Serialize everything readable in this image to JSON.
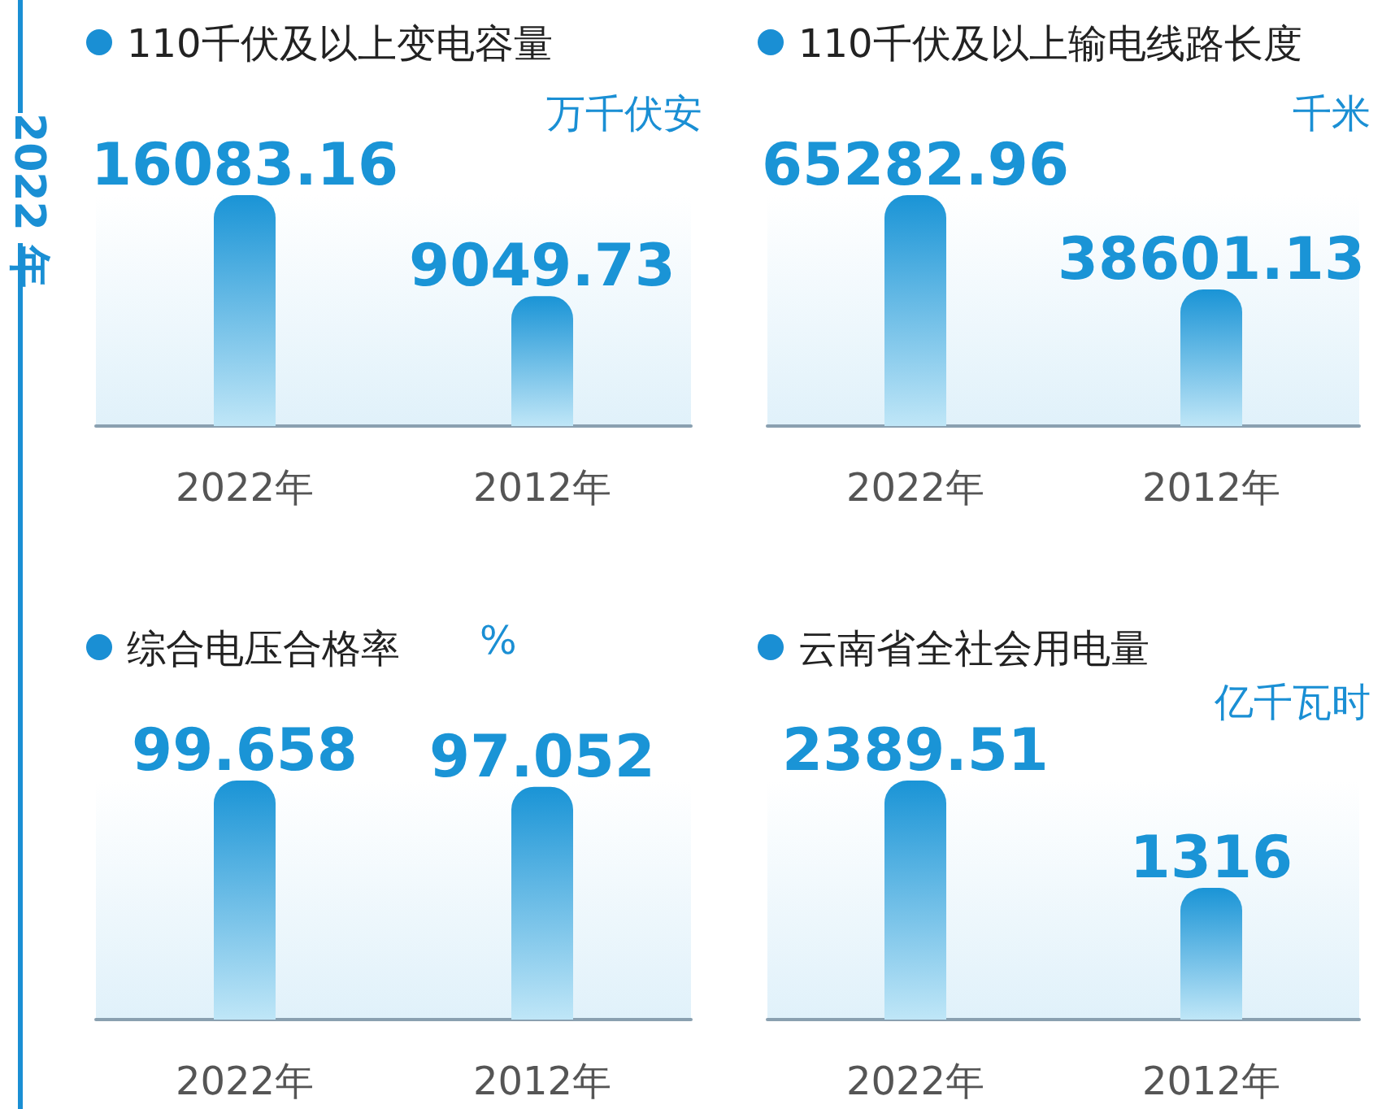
{
  "chart_data": [
    {
      "type": "bar",
      "title": "110千伏及以上变电容量",
      "ylabel": "万千伏安",
      "categories": [
        "2022年",
        "2012年"
      ],
      "series": [
        {
          "color": "#1a94d6",
          "values": [
            16083.16,
            9049.73
          ]
        }
      ],
      "data_labels": true,
      "annotations": [
        "2022 年"
      ]
    },
    {
      "type": "bar",
      "title": "110千伏及以上输电线路长度",
      "ylabel": "千米",
      "categories": [
        "2022年",
        "2012年"
      ],
      "series": [
        {
          "color": "#1a94d6",
          "values": [
            65282.96,
            38601.13
          ]
        }
      ],
      "data_labels": true
    },
    {
      "type": "bar",
      "title": "综合电压合格率",
      "ylabel": "%",
      "categories": [
        "2022年",
        "2012年"
      ],
      "series": [
        {
          "color": "#1a94d6",
          "values": [
            99.658,
            97.052
          ]
        }
      ],
      "data_labels": true
    },
    {
      "type": "bar",
      "title": "云南省全社会用电量",
      "ylabel": "亿千瓦时",
      "categories": [
        "2022年",
        "2012年"
      ],
      "series": [
        {
          "color": "#1a94d6",
          "values": [
            2389.51,
            1316
          ]
        }
      ],
      "data_labels": true
    }
  ]
}
